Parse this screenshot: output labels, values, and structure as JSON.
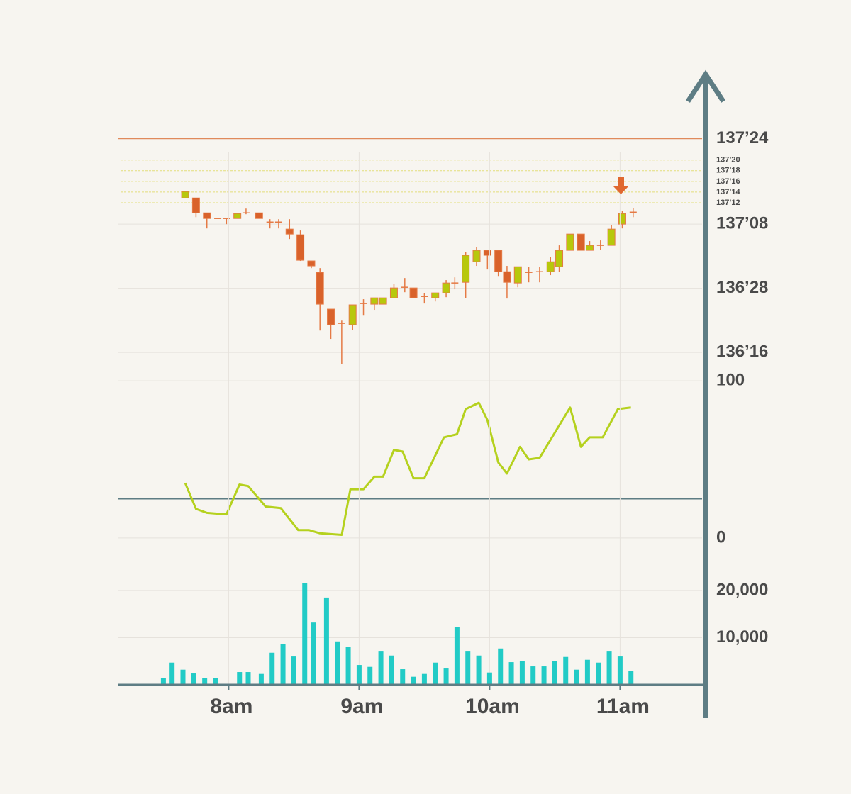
{
  "chart_data": [
    {
      "type": "candlestick",
      "x": [
        460,
        465,
        470,
        475,
        479,
        484,
        488,
        494,
        499,
        503,
        508,
        513,
        518,
        522,
        527,
        532,
        537,
        542,
        547,
        551,
        556,
        561,
        565,
        570,
        575,
        580,
        584,
        589,
        594,
        599,
        604,
        608,
        613,
        618,
        623,
        628,
        632,
        637,
        642,
        646,
        651,
        656,
        661,
        666
      ],
      "open": [
        137.403,
        137.403,
        137.316,
        137.283,
        137.283,
        137.283,
        137.316,
        137.316,
        137.262,
        137.262,
        137.221,
        137.188,
        137.035,
        136.968,
        136.753,
        136.67,
        136.662,
        136.786,
        136.782,
        136.782,
        136.819,
        136.881,
        136.877,
        136.827,
        136.819,
        136.848,
        136.906,
        136.91,
        137.03,
        137.097,
        137.097,
        136.972,
        136.906,
        136.968,
        136.972,
        136.972,
        137.001,
        137.097,
        137.192,
        137.097,
        137.126,
        137.126,
        137.25,
        137.32
      ],
      "high": [
        137.441,
        137.403,
        137.316,
        137.283,
        137.283,
        137.312,
        137.341,
        137.316,
        137.279,
        137.279,
        137.279,
        137.213,
        137.035,
        136.993,
        136.753,
        136.686,
        136.778,
        136.811,
        136.819,
        136.819,
        136.902,
        136.935,
        136.877,
        136.848,
        136.848,
        136.923,
        136.939,
        137.088,
        137.117,
        137.097,
        137.097,
        137.006,
        137.001,
        137.001,
        137.001,
        137.059,
        137.126,
        137.192,
        137.192,
        137.151,
        137.155,
        137.246,
        137.329,
        137.345
      ],
      "low": [
        137.403,
        137.291,
        137.225,
        137.283,
        137.25,
        137.283,
        137.308,
        137.283,
        137.225,
        137.225,
        137.163,
        137.035,
        136.993,
        136.628,
        136.579,
        136.434,
        136.633,
        136.715,
        136.749,
        136.782,
        136.819,
        136.852,
        136.819,
        136.786,
        136.798,
        136.823,
        136.869,
        136.819,
        137.006,
        136.985,
        136.943,
        136.815,
        136.881,
        136.91,
        136.91,
        136.952,
        136.972,
        137.097,
        137.097,
        137.097,
        137.101,
        137.126,
        137.225,
        137.291
      ],
      "close": [
        137.441,
        137.316,
        137.283,
        137.283,
        137.283,
        137.312,
        137.316,
        137.283,
        137.262,
        137.262,
        137.192,
        137.039,
        137.006,
        136.782,
        136.662,
        136.67,
        136.778,
        136.786,
        136.819,
        136.819,
        136.877,
        136.881,
        136.819,
        136.827,
        136.848,
        136.906,
        136.906,
        137.068,
        137.097,
        137.068,
        136.972,
        136.91,
        137.001,
        136.968,
        136.972,
        137.03,
        137.097,
        137.192,
        137.097,
        137.126,
        137.126,
        137.221,
        137.312,
        137.32
      ],
      "up_color": "#b7c80c",
      "down_color": "#d9622b",
      "wick_color": "#e57a45",
      "xlim": [
        429,
        699
      ],
      "ylim": [
        136.43,
        137.86
      ],
      "yticks": [
        {
          "value": 137.75,
          "label": "137’24"
        },
        {
          "value": 137.25,
          "label": "137’08"
        },
        {
          "value": 136.875,
          "label": "136’28"
        },
        {
          "value": 136.5,
          "label": "136’16"
        }
      ],
      "level_lines": [
        {
          "value": 137.625,
          "label": "137’20"
        },
        {
          "value": 137.5625,
          "label": "137’18"
        },
        {
          "value": 137.5,
          "label": "137’16"
        },
        {
          "value": 137.4375,
          "label": "137’14"
        },
        {
          "value": 137.375,
          "label": "137’12"
        }
      ],
      "level_color": "#e3de7a",
      "resistance": 137.75,
      "resistance_color": "#e08a5c",
      "grid": true
    },
    {
      "type": "line",
      "x": [
        460,
        465,
        470,
        479,
        485,
        489,
        497,
        504,
        512,
        517,
        522,
        532,
        536,
        542,
        547,
        551,
        556,
        560,
        565,
        570,
        579,
        585,
        589,
        595,
        599,
        604,
        608,
        614,
        618,
        623,
        637,
        642,
        646,
        652,
        659,
        665
      ],
      "values": [
        35,
        18.5,
        16,
        15,
        34,
        33,
        20,
        19,
        5,
        5,
        3,
        2,
        31,
        31,
        39,
        39,
        56,
        55,
        38,
        38,
        64,
        66,
        82,
        86,
        75,
        48,
        41,
        58,
        50,
        51,
        83,
        58,
        64,
        64,
        82,
        83
      ],
      "color": "#b5d11e",
      "xlim": [
        429,
        699
      ],
      "ylim": [
        -5,
        105
      ],
      "yticks": [
        0,
        100
      ],
      "ref_line": 25,
      "ref_color": "#5e7d84",
      "grid": true
    },
    {
      "type": "bar",
      "x": [
        450,
        454,
        459,
        464,
        469,
        474,
        485,
        489,
        495,
        500,
        505,
        510,
        515,
        519,
        525,
        530,
        535,
        540,
        545,
        550,
        555,
        560,
        565,
        570,
        575,
        580,
        585,
        590,
        595,
        600,
        605,
        610,
        615,
        620,
        625,
        630,
        635,
        640,
        645,
        650,
        655,
        660,
        665
      ],
      "values": [
        1400,
        4700,
        3200,
        2400,
        1400,
        1500,
        2700,
        2700,
        2300,
        6800,
        8700,
        6000,
        21600,
        13200,
        18500,
        9200,
        8100,
        4200,
        3800,
        7200,
        6200,
        3300,
        1700,
        2300,
        4700,
        3600,
        12300,
        7200,
        6200,
        2600,
        7700,
        4800,
        5100,
        3900,
        3900,
        5000,
        5900,
        3200,
        5300,
        4700,
        7200,
        6000,
        2900
      ],
      "color": "#22cbc6",
      "xlim": [
        429,
        699
      ],
      "ylim": [
        0,
        26000
      ],
      "yticks": [
        {
          "value": 10000,
          "label": "10,000"
        },
        {
          "value": 20000,
          "label": "20,000"
        }
      ],
      "xticks": [
        {
          "value": 480,
          "label": "8am"
        },
        {
          "value": 540,
          "label": "9am"
        },
        {
          "value": 600,
          "label": "10am"
        },
        {
          "value": 660,
          "label": "11am"
        }
      ],
      "grid": true
    }
  ]
}
